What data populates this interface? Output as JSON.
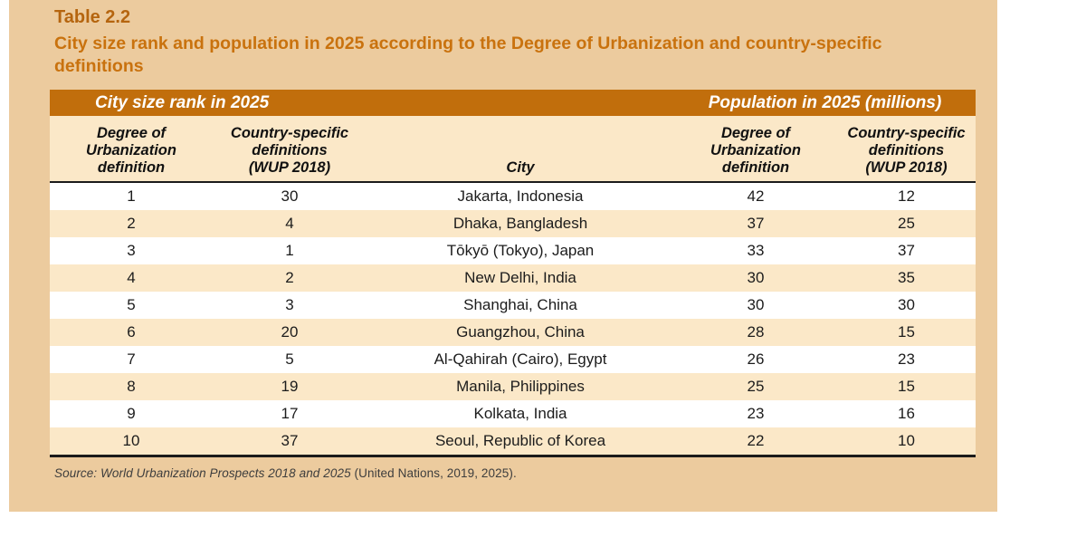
{
  "title": "Table 2.2",
  "subtitle": "City size rank and population in 2025 according to the Degree of Urbanization and country-specific definitions",
  "table": {
    "group_headers": {
      "left": "City size rank in 2025",
      "right": "Population in 2025 (millions)"
    },
    "column_headers": [
      "Degree of\nUrbanization\ndefinition",
      "Country-specific\ndefinitions\n(WUP 2018)",
      "City",
      "Degree of\nUrbanization\ndefinition",
      "Country-specific\ndefinitions\n(WUP 2018)"
    ],
    "rows": [
      {
        "rank_dou": "1",
        "rank_wup": "30",
        "city": "Jakarta, Indonesia",
        "pop_dou": "42",
        "pop_wup": "12"
      },
      {
        "rank_dou": "2",
        "rank_wup": "4",
        "city": "Dhaka, Bangladesh",
        "pop_dou": "37",
        "pop_wup": "25"
      },
      {
        "rank_dou": "3",
        "rank_wup": "1",
        "city": "Tōkyō (Tokyo), Japan",
        "pop_dou": "33",
        "pop_wup": "37"
      },
      {
        "rank_dou": "4",
        "rank_wup": "2",
        "city": "New Delhi, India",
        "pop_dou": "30",
        "pop_wup": "35"
      },
      {
        "rank_dou": "5",
        "rank_wup": "3",
        "city": "Shanghai, China",
        "pop_dou": "30",
        "pop_wup": "30"
      },
      {
        "rank_dou": "6",
        "rank_wup": "20",
        "city": "Guangzhou, China",
        "pop_dou": "28",
        "pop_wup": "15"
      },
      {
        "rank_dou": "7",
        "rank_wup": "5",
        "city": "Al-Qahirah (Cairo), Egypt",
        "pop_dou": "26",
        "pop_wup": "23"
      },
      {
        "rank_dou": "8",
        "rank_wup": "19",
        "city": "Manila, Philippines",
        "pop_dou": "25",
        "pop_wup": "15"
      },
      {
        "rank_dou": "9",
        "rank_wup": "17",
        "city": "Kolkata, India",
        "pop_dou": "23",
        "pop_wup": "16"
      },
      {
        "rank_dou": "10",
        "rank_wup": "37",
        "city": "Seoul, Republic of Korea",
        "pop_dou": "22",
        "pop_wup": "10"
      }
    ]
  },
  "source": {
    "italic_part": "Source: World Urbanization Prospects 2018 and 2025",
    "regular_part": " (United Nations, 2019, 2025)."
  },
  "colors": {
    "panel_background": "#ECCB9E",
    "band_orange": "#C16E0C",
    "row_cream": "#FBE8C8",
    "row_white": "#FFFFFF",
    "title_orange": "#B5650F",
    "subtitle_orange": "#C9720E",
    "rule_black": "#1B1B1B"
  }
}
